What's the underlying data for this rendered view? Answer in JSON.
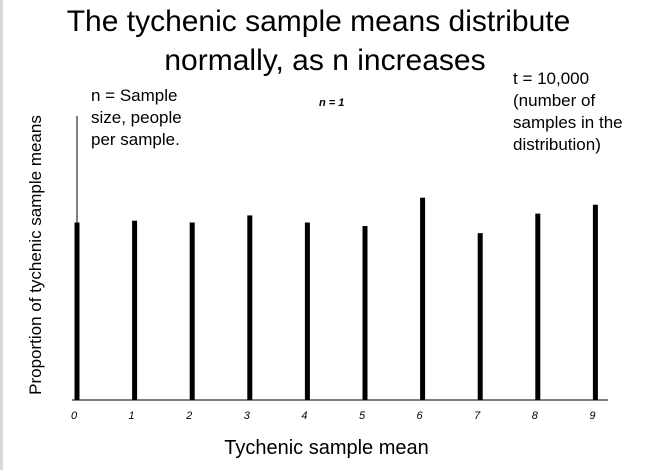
{
  "title_lines": [
    "The tychenic sample means distribute",
    "normally, as n increases"
  ],
  "annotations": {
    "n_note": "n = Sample\nsize, people\nper sample.",
    "t_note": "t = 10,000\n(number of\nsamples in the\ndistribution)"
  },
  "chart_data": {
    "type": "bar",
    "title": "The tychenic sample means distribute normally, as n increases",
    "panel_label": "n = 1",
    "xlabel": "Tychenic sample mean",
    "ylabel": "Proportion of tychenic sample means",
    "categories": [
      "0",
      "1",
      "2",
      "3",
      "4",
      "5",
      "6",
      "7",
      "8",
      "9"
    ],
    "values": [
      0.1,
      0.101,
      0.1,
      0.104,
      0.1,
      0.098,
      0.114,
      0.094,
      0.105,
      0.11
    ],
    "ylim": [
      0,
      0.16
    ],
    "grid": false,
    "legend": "none",
    "bar_color": "#000000"
  }
}
